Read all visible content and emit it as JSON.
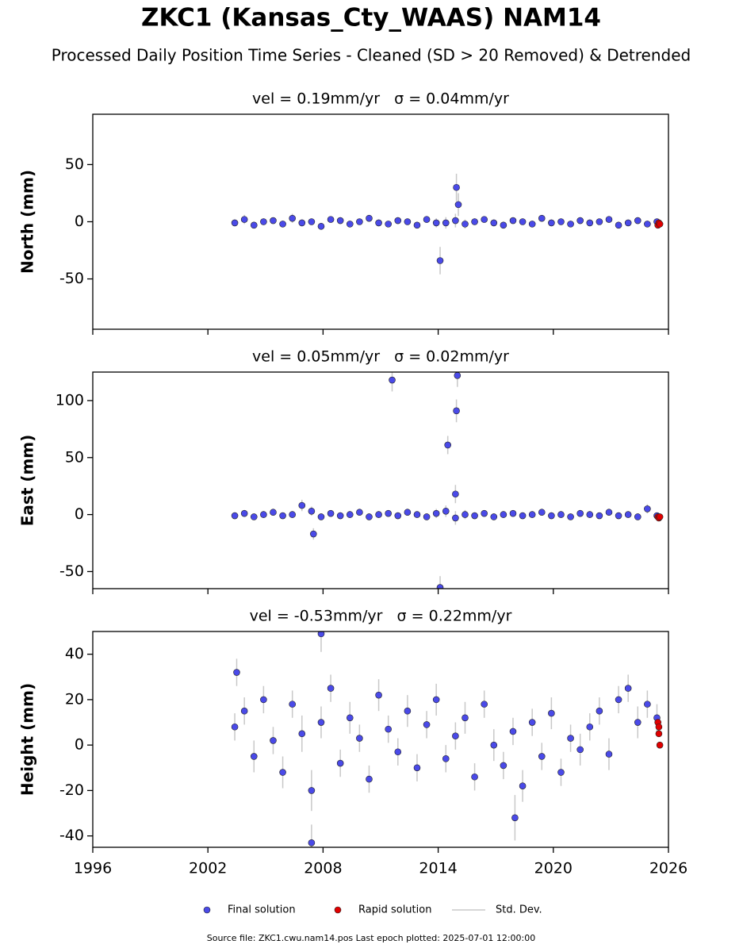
{
  "title": "ZKC1 (Kansas_Cty_WAAS) NAM14",
  "subtitle": "Processed Daily Position Time Series - Cleaned (SD > 20 Removed) & Detrended",
  "source": "Source file: ZKC1.cwu.nam14.pos  Last epoch plotted: 2025-07-01 12:00:00",
  "chart_data": [
    {
      "type": "scatter",
      "title": "vel = 0.19mm/yr   σ = 0.04mm/yr",
      "ylabel": "North (mm)",
      "xlim": [
        1996,
        2026
      ],
      "xticks": [
        1996,
        2002,
        2008,
        2014,
        2020,
        2026
      ],
      "ylim": [
        -94,
        94
      ],
      "yticks": [
        -50,
        0,
        50
      ],
      "errorbar_label": "Std. Dev.",
      "errorbar_color": "#c8c8c8",
      "series": [
        {
          "name": "Final solution",
          "color": "#4a4ae8",
          "x": [
            2003.4,
            2003.9,
            2004.4,
            2004.9,
            2005.4,
            2005.9,
            2006.4,
            2006.9,
            2007.4,
            2007.9,
            2008.4,
            2008.9,
            2009.4,
            2009.9,
            2010.4,
            2010.9,
            2011.4,
            2011.9,
            2012.4,
            2012.9,
            2013.4,
            2013.9,
            2014.4,
            2014.9,
            2015.4,
            2015.9,
            2016.4,
            2016.9,
            2017.4,
            2017.9,
            2018.4,
            2018.9,
            2019.4,
            2019.9,
            2020.4,
            2020.9,
            2021.4,
            2021.9,
            2022.4,
            2022.9,
            2023.4,
            2023.9,
            2024.4,
            2024.9,
            2025.4,
            2014.95,
            2014.1,
            2015.05
          ],
          "values": [
            -1,
            2,
            -3,
            0,
            1,
            -2,
            3,
            -1,
            0,
            -4,
            2,
            1,
            -2,
            0,
            3,
            -1,
            -2,
            1,
            0,
            -3,
            2,
            -1,
            -1,
            1,
            -2,
            0,
            2,
            -1,
            -3,
            1,
            0,
            -2,
            3,
            -1,
            0,
            -2,
            1,
            -1,
            0,
            2,
            -3,
            -1,
            1,
            -2,
            0,
            30,
            -34,
            15
          ],
          "errors": [
            3,
            4,
            3,
            3,
            2,
            3,
            4,
            3,
            3,
            3,
            2,
            3,
            3,
            2,
            3,
            3,
            2,
            3,
            3,
            2,
            3,
            4,
            5,
            6,
            4,
            3,
            2,
            3,
            3,
            2,
            3,
            3,
            2,
            3,
            3,
            2,
            3,
            3,
            2,
            3,
            3,
            2,
            3,
            3,
            2,
            12,
            12,
            10
          ]
        },
        {
          "name": "Rapid solution",
          "color": "#e00000",
          "x": [
            2025.45,
            2025.5,
            2025.55
          ],
          "values": [
            -3,
            -1,
            -2
          ],
          "errors": [
            1,
            1,
            1
          ]
        }
      ]
    },
    {
      "type": "scatter",
      "title": "vel = 0.05mm/yr   σ = 0.02mm/yr",
      "ylabel": "East (mm)",
      "xlim": [
        1996,
        2026
      ],
      "xticks": [
        1996,
        2002,
        2008,
        2014,
        2020,
        2026
      ],
      "ylim": [
        -65,
        125
      ],
      "yticks": [
        -50,
        0,
        50,
        100
      ],
      "series": [
        {
          "name": "Final solution",
          "color": "#4a4ae8",
          "x": [
            2003.4,
            2003.9,
            2004.4,
            2004.9,
            2005.4,
            2005.9,
            2006.4,
            2006.9,
            2007.4,
            2007.9,
            2008.4,
            2008.9,
            2009.4,
            2009.9,
            2010.4,
            2010.9,
            2011.4,
            2011.9,
            2012.4,
            2012.9,
            2013.4,
            2013.9,
            2014.4,
            2014.9,
            2015.4,
            2015.9,
            2016.4,
            2016.9,
            2017.4,
            2017.9,
            2018.4,
            2018.9,
            2019.4,
            2019.9,
            2020.4,
            2020.9,
            2021.4,
            2021.9,
            2022.4,
            2022.9,
            2023.4,
            2023.9,
            2024.4,
            2024.9,
            2025.4,
            2011.6,
            2015.0,
            2014.95,
            2014.5,
            2014.1,
            2007.5,
            2014.9
          ],
          "values": [
            -1,
            1,
            -2,
            0,
            2,
            -1,
            0,
            8,
            3,
            -2,
            1,
            -1,
            0,
            2,
            -2,
            0,
            1,
            -1,
            2,
            0,
            -2,
            1,
            3,
            -3,
            0,
            -1,
            1,
            -2,
            0,
            1,
            -1,
            0,
            2,
            -1,
            0,
            -2,
            1,
            0,
            -1,
            2,
            -1,
            0,
            -2,
            5,
            -1,
            118,
            122,
            91,
            61,
            -64,
            -17,
            18
          ],
          "errors": [
            3,
            3,
            2,
            3,
            3,
            2,
            3,
            5,
            4,
            3,
            2,
            3,
            3,
            2,
            3,
            3,
            2,
            3,
            3,
            2,
            3,
            4,
            5,
            6,
            4,
            3,
            2,
            3,
            3,
            2,
            3,
            3,
            2,
            3,
            3,
            2,
            3,
            3,
            2,
            3,
            3,
            2,
            3,
            4,
            2,
            10,
            10,
            10,
            8,
            10,
            5,
            8
          ]
        },
        {
          "name": "Rapid solution",
          "color": "#e00000",
          "x": [
            2025.45,
            2025.5,
            2025.55
          ],
          "values": [
            -2,
            -3,
            -2
          ],
          "errors": [
            1,
            1,
            1
          ]
        }
      ]
    },
    {
      "type": "scatter",
      "title": "vel = -0.53mm/yr   σ = 0.22mm/yr",
      "ylabel": "Height (mm)",
      "xlim": [
        1996,
        2026
      ],
      "xticks": [
        1996,
        2002,
        2008,
        2014,
        2020,
        2026
      ],
      "ylim": [
        -45,
        50
      ],
      "yticks": [
        -40,
        -20,
        0,
        20,
        40
      ],
      "series": [
        {
          "name": "Final solution",
          "color": "#4a4ae8",
          "x": [
            2003.4,
            2003.9,
            2004.4,
            2004.9,
            2005.4,
            2005.9,
            2006.4,
            2006.9,
            2007.4,
            2007.9,
            2008.4,
            2008.9,
            2009.4,
            2009.9,
            2010.4,
            2010.9,
            2011.4,
            2011.9,
            2012.4,
            2012.9,
            2013.4,
            2013.9,
            2014.4,
            2014.9,
            2015.4,
            2015.9,
            2016.4,
            2016.9,
            2017.4,
            2017.9,
            2018.4,
            2018.9,
            2019.4,
            2019.9,
            2020.4,
            2020.9,
            2021.4,
            2021.9,
            2022.4,
            2022.9,
            2023.4,
            2023.9,
            2024.4,
            2024.9,
            2025.4,
            2007.4,
            2007.9,
            2003.5,
            2018.0
          ],
          "values": [
            8,
            15,
            -5,
            20,
            2,
            -12,
            18,
            5,
            -20,
            10,
            25,
            -8,
            12,
            3,
            -15,
            22,
            7,
            -3,
            15,
            -10,
            9,
            20,
            -6,
            4,
            12,
            -14,
            18,
            0,
            -9,
            6,
            -18,
            10,
            -5,
            14,
            -12,
            3,
            -2,
            8,
            15,
            -4,
            20,
            25,
            10,
            18,
            12,
            -43,
            49,
            32,
            -32
          ],
          "errors": [
            6,
            6,
            7,
            6,
            6,
            7,
            6,
            8,
            9,
            7,
            6,
            6,
            7,
            6,
            6,
            7,
            6,
            6,
            7,
            6,
            6,
            7,
            6,
            6,
            7,
            6,
            6,
            7,
            6,
            6,
            7,
            6,
            6,
            7,
            6,
            6,
            7,
            6,
            6,
            7,
            6,
            6,
            7,
            6,
            6,
            8,
            8,
            6,
            10
          ]
        },
        {
          "name": "Rapid solution",
          "color": "#e00000",
          "x": [
            2025.45,
            2025.5,
            2025.55,
            2025.5
          ],
          "values": [
            10,
            5,
            0,
            8
          ],
          "errors": [
            1,
            1,
            1,
            1
          ]
        }
      ]
    }
  ]
}
